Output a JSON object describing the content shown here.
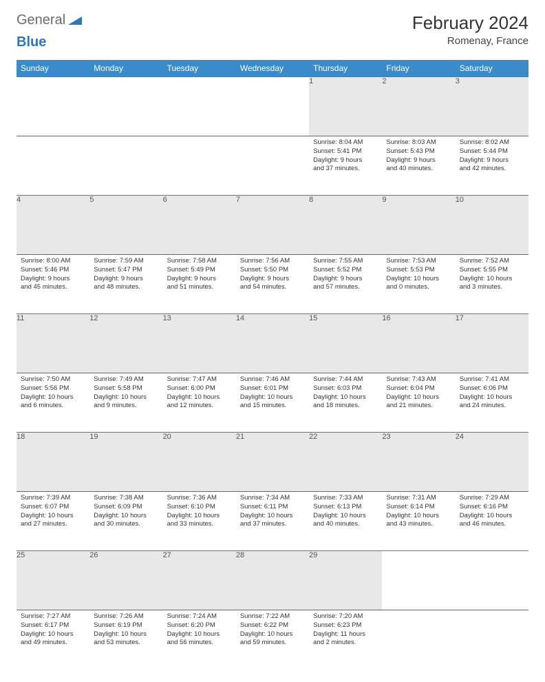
{
  "brand": {
    "general": "General",
    "blue": "Blue"
  },
  "title": "February 2024",
  "location": "Romenay, France",
  "colors": {
    "header_bg": "#3a8bc9",
    "header_text": "#ffffff",
    "daynum_bg": "#e8e8e8",
    "row_border": "#4a7bb0",
    "logo_gray": "#6b6b6b",
    "logo_blue": "#2f77b8"
  },
  "weekdays": [
    "Sunday",
    "Monday",
    "Tuesday",
    "Wednesday",
    "Thursday",
    "Friday",
    "Saturday"
  ],
  "weeks": [
    [
      {
        "n": "",
        "lines": []
      },
      {
        "n": "",
        "lines": []
      },
      {
        "n": "",
        "lines": []
      },
      {
        "n": "",
        "lines": []
      },
      {
        "n": "1",
        "lines": [
          "Sunrise: 8:04 AM",
          "Sunset: 5:41 PM",
          "Daylight: 9 hours",
          "and 37 minutes."
        ]
      },
      {
        "n": "2",
        "lines": [
          "Sunrise: 8:03 AM",
          "Sunset: 5:43 PM",
          "Daylight: 9 hours",
          "and 40 minutes."
        ]
      },
      {
        "n": "3",
        "lines": [
          "Sunrise: 8:02 AM",
          "Sunset: 5:44 PM",
          "Daylight: 9 hours",
          "and 42 minutes."
        ]
      }
    ],
    [
      {
        "n": "4",
        "lines": [
          "Sunrise: 8:00 AM",
          "Sunset: 5:46 PM",
          "Daylight: 9 hours",
          "and 45 minutes."
        ]
      },
      {
        "n": "5",
        "lines": [
          "Sunrise: 7:59 AM",
          "Sunset: 5:47 PM",
          "Daylight: 9 hours",
          "and 48 minutes."
        ]
      },
      {
        "n": "6",
        "lines": [
          "Sunrise: 7:58 AM",
          "Sunset: 5:49 PM",
          "Daylight: 9 hours",
          "and 51 minutes."
        ]
      },
      {
        "n": "7",
        "lines": [
          "Sunrise: 7:56 AM",
          "Sunset: 5:50 PM",
          "Daylight: 9 hours",
          "and 54 minutes."
        ]
      },
      {
        "n": "8",
        "lines": [
          "Sunrise: 7:55 AM",
          "Sunset: 5:52 PM",
          "Daylight: 9 hours",
          "and 57 minutes."
        ]
      },
      {
        "n": "9",
        "lines": [
          "Sunrise: 7:53 AM",
          "Sunset: 5:53 PM",
          "Daylight: 10 hours",
          "and 0 minutes."
        ]
      },
      {
        "n": "10",
        "lines": [
          "Sunrise: 7:52 AM",
          "Sunset: 5:55 PM",
          "Daylight: 10 hours",
          "and 3 minutes."
        ]
      }
    ],
    [
      {
        "n": "11",
        "lines": [
          "Sunrise: 7:50 AM",
          "Sunset: 5:56 PM",
          "Daylight: 10 hours",
          "and 6 minutes."
        ]
      },
      {
        "n": "12",
        "lines": [
          "Sunrise: 7:49 AM",
          "Sunset: 5:58 PM",
          "Daylight: 10 hours",
          "and 9 minutes."
        ]
      },
      {
        "n": "13",
        "lines": [
          "Sunrise: 7:47 AM",
          "Sunset: 6:00 PM",
          "Daylight: 10 hours",
          "and 12 minutes."
        ]
      },
      {
        "n": "14",
        "lines": [
          "Sunrise: 7:46 AM",
          "Sunset: 6:01 PM",
          "Daylight: 10 hours",
          "and 15 minutes."
        ]
      },
      {
        "n": "15",
        "lines": [
          "Sunrise: 7:44 AM",
          "Sunset: 6:03 PM",
          "Daylight: 10 hours",
          "and 18 minutes."
        ]
      },
      {
        "n": "16",
        "lines": [
          "Sunrise: 7:43 AM",
          "Sunset: 6:04 PM",
          "Daylight: 10 hours",
          "and 21 minutes."
        ]
      },
      {
        "n": "17",
        "lines": [
          "Sunrise: 7:41 AM",
          "Sunset: 6:06 PM",
          "Daylight: 10 hours",
          "and 24 minutes."
        ]
      }
    ],
    [
      {
        "n": "18",
        "lines": [
          "Sunrise: 7:39 AM",
          "Sunset: 6:07 PM",
          "Daylight: 10 hours",
          "and 27 minutes."
        ]
      },
      {
        "n": "19",
        "lines": [
          "Sunrise: 7:38 AM",
          "Sunset: 6:09 PM",
          "Daylight: 10 hours",
          "and 30 minutes."
        ]
      },
      {
        "n": "20",
        "lines": [
          "Sunrise: 7:36 AM",
          "Sunset: 6:10 PM",
          "Daylight: 10 hours",
          "and 33 minutes."
        ]
      },
      {
        "n": "21",
        "lines": [
          "Sunrise: 7:34 AM",
          "Sunset: 6:11 PM",
          "Daylight: 10 hours",
          "and 37 minutes."
        ]
      },
      {
        "n": "22",
        "lines": [
          "Sunrise: 7:33 AM",
          "Sunset: 6:13 PM",
          "Daylight: 10 hours",
          "and 40 minutes."
        ]
      },
      {
        "n": "23",
        "lines": [
          "Sunrise: 7:31 AM",
          "Sunset: 6:14 PM",
          "Daylight: 10 hours",
          "and 43 minutes."
        ]
      },
      {
        "n": "24",
        "lines": [
          "Sunrise: 7:29 AM",
          "Sunset: 6:16 PM",
          "Daylight: 10 hours",
          "and 46 minutes."
        ]
      }
    ],
    [
      {
        "n": "25",
        "lines": [
          "Sunrise: 7:27 AM",
          "Sunset: 6:17 PM",
          "Daylight: 10 hours",
          "and 49 minutes."
        ]
      },
      {
        "n": "26",
        "lines": [
          "Sunrise: 7:26 AM",
          "Sunset: 6:19 PM",
          "Daylight: 10 hours",
          "and 53 minutes."
        ]
      },
      {
        "n": "27",
        "lines": [
          "Sunrise: 7:24 AM",
          "Sunset: 6:20 PM",
          "Daylight: 10 hours",
          "and 56 minutes."
        ]
      },
      {
        "n": "28",
        "lines": [
          "Sunrise: 7:22 AM",
          "Sunset: 6:22 PM",
          "Daylight: 10 hours",
          "and 59 minutes."
        ]
      },
      {
        "n": "29",
        "lines": [
          "Sunrise: 7:20 AM",
          "Sunset: 6:23 PM",
          "Daylight: 11 hours",
          "and 2 minutes."
        ]
      },
      {
        "n": "",
        "lines": []
      },
      {
        "n": "",
        "lines": []
      }
    ]
  ]
}
